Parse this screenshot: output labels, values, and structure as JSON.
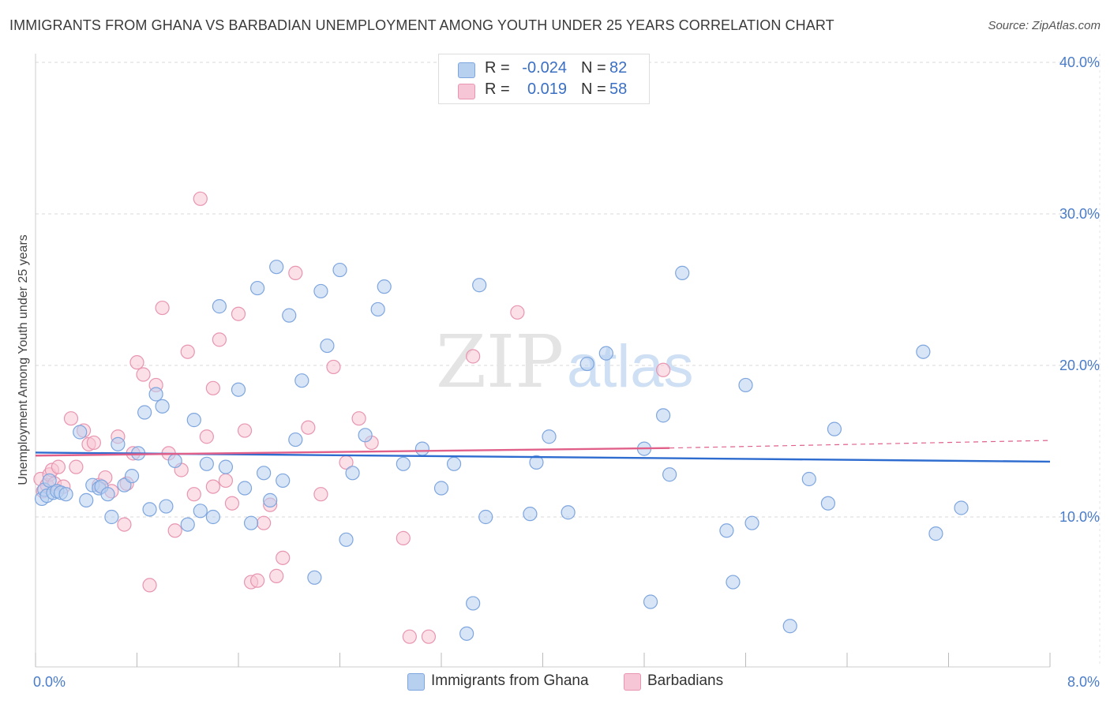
{
  "title": "IMMIGRANTS FROM GHANA VS BARBADIAN UNEMPLOYMENT AMONG YOUTH UNDER 25 YEARS CORRELATION CHART",
  "source": "Source: ZipAtlas.com",
  "watermark": {
    "zip": "ZIP",
    "atlas": "atlas"
  },
  "colors": {
    "blue_fill": "#b8d0f0",
    "blue_stroke": "#7ea6de",
    "blue_line": "#2f6ccf",
    "pink_fill": "#f7c6d6",
    "pink_stroke": "#e895b0",
    "pink_line": "#e0608a",
    "tick_text": "#4a7cc9",
    "grid": "#d8d8d8"
  },
  "legend": {
    "rows": [
      {
        "r_label": "R =",
        "r_value": "-0.024",
        "n_label": "N =",
        "n_value": "82"
      },
      {
        "r_label": "R =",
        "r_value": "0.019",
        "n_label": "N =",
        "n_value": "58"
      }
    ]
  },
  "bottom_legend": [
    "Immigrants from Ghana",
    "Barbadians"
  ],
  "chart_data": {
    "type": "scatter",
    "title": "IMMIGRANTS FROM GHANA VS BARBADIAN UNEMPLOYMENT AMONG YOUTH UNDER 25 YEARS CORRELATION CHART",
    "xlabel": "",
    "ylabel": "Unemployment Among Youth under 25 years",
    "xlim": [
      0,
      8
    ],
    "ylim": [
      0,
      42
    ],
    "x_tick_labels": [
      "0.0%",
      "8.0%"
    ],
    "y_ticks": [
      10,
      20,
      30,
      40
    ],
    "y_tick_labels": [
      "10.0%",
      "20.0%",
      "30.0%",
      "40.0%"
    ],
    "grid": true,
    "series": [
      {
        "name": "Immigrants from Ghana",
        "color": "blue",
        "points": [
          [
            0.05,
            11.2
          ],
          [
            0.07,
            11.8
          ],
          [
            0.09,
            11.4
          ],
          [
            0.11,
            12.4
          ],
          [
            0.14,
            11.6
          ],
          [
            0.17,
            11.7
          ],
          [
            0.2,
            11.6
          ],
          [
            0.24,
            11.5
          ],
          [
            0.35,
            15.6
          ],
          [
            0.4,
            11.1
          ],
          [
            0.45,
            12.1
          ],
          [
            0.5,
            11.9
          ],
          [
            0.52,
            12.0
          ],
          [
            0.57,
            11.5
          ],
          [
            0.6,
            10.0
          ],
          [
            0.65,
            14.8
          ],
          [
            0.7,
            12.1
          ],
          [
            0.76,
            12.7
          ],
          [
            0.81,
            14.2
          ],
          [
            0.86,
            16.9
          ],
          [
            0.9,
            10.5
          ],
          [
            0.95,
            18.1
          ],
          [
            1.0,
            17.3
          ],
          [
            1.03,
            10.7
          ],
          [
            1.1,
            13.7
          ],
          [
            1.2,
            9.5
          ],
          [
            1.25,
            16.4
          ],
          [
            1.3,
            10.4
          ],
          [
            1.35,
            13.5
          ],
          [
            1.4,
            10.0
          ],
          [
            1.45,
            23.9
          ],
          [
            1.5,
            13.3
          ],
          [
            1.6,
            18.4
          ],
          [
            1.65,
            11.9
          ],
          [
            1.7,
            9.6
          ],
          [
            1.75,
            25.1
          ],
          [
            1.8,
            12.9
          ],
          [
            1.85,
            11.1
          ],
          [
            1.9,
            26.5
          ],
          [
            1.95,
            12.4
          ],
          [
            2.0,
            23.3
          ],
          [
            2.05,
            15.1
          ],
          [
            2.1,
            19.0
          ],
          [
            2.2,
            6.0
          ],
          [
            2.25,
            24.9
          ],
          [
            2.3,
            21.3
          ],
          [
            2.4,
            26.3
          ],
          [
            2.45,
            8.5
          ],
          [
            2.5,
            12.9
          ],
          [
            2.6,
            15.4
          ],
          [
            2.7,
            23.7
          ],
          [
            2.75,
            25.2
          ],
          [
            2.9,
            13.5
          ],
          [
            3.05,
            14.5
          ],
          [
            3.2,
            11.9
          ],
          [
            3.3,
            13.5
          ],
          [
            3.4,
            2.3
          ],
          [
            3.45,
            4.3
          ],
          [
            3.5,
            25.3
          ],
          [
            3.55,
            10.0
          ],
          [
            3.9,
            10.2
          ],
          [
            3.95,
            13.6
          ],
          [
            4.05,
            15.3
          ],
          [
            4.2,
            10.3
          ],
          [
            4.35,
            20.1
          ],
          [
            4.5,
            20.8
          ],
          [
            4.8,
            14.5
          ],
          [
            4.85,
            4.4
          ],
          [
            4.95,
            16.7
          ],
          [
            5.0,
            12.8
          ],
          [
            5.1,
            26.1
          ],
          [
            5.45,
            9.1
          ],
          [
            5.5,
            5.7
          ],
          [
            5.6,
            18.7
          ],
          [
            5.65,
            9.6
          ],
          [
            5.95,
            2.8
          ],
          [
            6.1,
            12.5
          ],
          [
            6.25,
            10.9
          ],
          [
            6.3,
            15.8
          ],
          [
            7.0,
            20.9
          ],
          [
            7.1,
            8.9
          ],
          [
            7.3,
            10.6
          ]
        ]
      },
      {
        "name": "Barbadians",
        "color": "pink",
        "points": [
          [
            0.04,
            12.5
          ],
          [
            0.06,
            11.7
          ],
          [
            0.09,
            12.1
          ],
          [
            0.11,
            12.8
          ],
          [
            0.13,
            13.1
          ],
          [
            0.15,
            12.2
          ],
          [
            0.18,
            13.3
          ],
          [
            0.22,
            12.0
          ],
          [
            0.28,
            16.5
          ],
          [
            0.32,
            13.3
          ],
          [
            0.38,
            15.7
          ],
          [
            0.42,
            14.8
          ],
          [
            0.46,
            14.9
          ],
          [
            0.5,
            12.1
          ],
          [
            0.55,
            12.6
          ],
          [
            0.6,
            11.7
          ],
          [
            0.65,
            15.3
          ],
          [
            0.7,
            9.5
          ],
          [
            0.72,
            12.2
          ],
          [
            0.77,
            14.2
          ],
          [
            0.8,
            20.2
          ],
          [
            0.85,
            19.4
          ],
          [
            0.9,
            5.5
          ],
          [
            0.95,
            18.7
          ],
          [
            1.0,
            23.8
          ],
          [
            1.05,
            14.2
          ],
          [
            1.1,
            9.1
          ],
          [
            1.15,
            13.1
          ],
          [
            1.2,
            20.9
          ],
          [
            1.25,
            11.5
          ],
          [
            1.3,
            31.0
          ],
          [
            1.35,
            15.3
          ],
          [
            1.4,
            18.5
          ],
          [
            1.45,
            21.7
          ],
          [
            1.5,
            12.4
          ],
          [
            1.55,
            10.9
          ],
          [
            1.6,
            23.4
          ],
          [
            1.65,
            15.7
          ],
          [
            1.7,
            5.7
          ],
          [
            1.75,
            5.8
          ],
          [
            1.8,
            9.6
          ],
          [
            1.85,
            10.8
          ],
          [
            1.9,
            6.1
          ],
          [
            1.95,
            7.3
          ],
          [
            2.05,
            26.1
          ],
          [
            2.15,
            15.9
          ],
          [
            2.25,
            11.5
          ],
          [
            2.35,
            19.9
          ],
          [
            2.45,
            13.6
          ],
          [
            2.55,
            16.5
          ],
          [
            2.65,
            14.9
          ],
          [
            2.9,
            8.6
          ],
          [
            2.95,
            2.1
          ],
          [
            3.1,
            2.1
          ],
          [
            3.45,
            20.6
          ],
          [
            3.8,
            23.5
          ],
          [
            4.95,
            19.7
          ],
          [
            1.4,
            12.0
          ]
        ]
      }
    ],
    "trendlines": [
      {
        "series": "Immigrants from Ghana",
        "x": [
          0.0,
          8.0
        ],
        "y": [
          14.25,
          13.65
        ],
        "style": "solid"
      },
      {
        "series": "Barbadians",
        "x": [
          0.0,
          5.0
        ],
        "y": [
          14.05,
          14.55
        ],
        "style": "solid"
      },
      {
        "series": "Barbadians",
        "x": [
          5.0,
          8.0
        ],
        "y": [
          14.55,
          15.05
        ],
        "style": "dashed"
      }
    ]
  }
}
